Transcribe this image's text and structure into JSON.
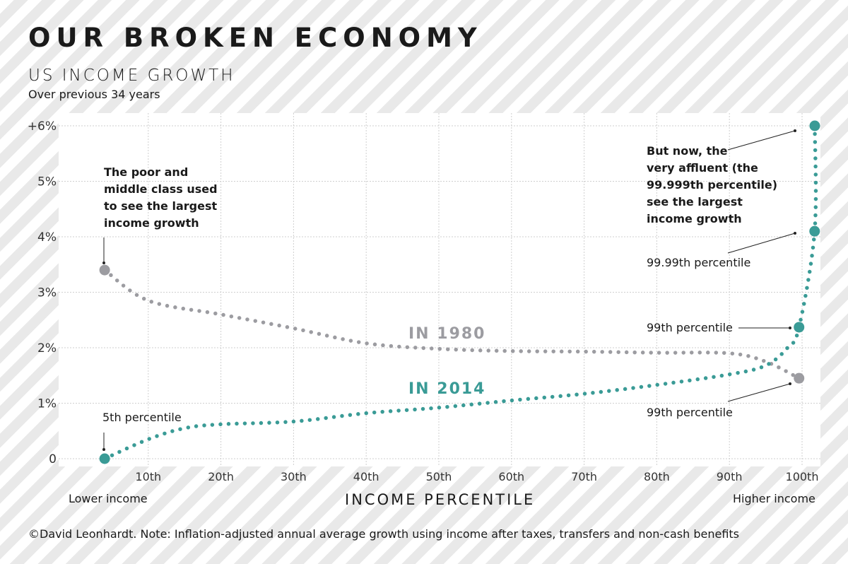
{
  "title": "OUR BROKEN ECONOMY",
  "subtitle": "US INCOME GROWTH",
  "subsubtitle": "Over previous 34 years",
  "note": "©David Leonhardt. Note: Inflation-adjusted annual average growth using income after taxes, transfers and non-cash benefits",
  "colors": {
    "series_2014": "#3a9b96",
    "series_1980": "#9c9ca1",
    "stripe": "#e9e9e9"
  },
  "chart_data": {
    "type": "line",
    "xlabel": "INCOME PERCENTILE",
    "x_left_label": "Lower income",
    "x_right_label": "Higher income",
    "ylim": [
      0,
      6
    ],
    "xlim": [
      0,
      102
    ],
    "grid": true,
    "yticks": [
      {
        "v": 0,
        "label": "0"
      },
      {
        "v": 1,
        "label": "1%"
      },
      {
        "v": 2,
        "label": "2%"
      },
      {
        "v": 3,
        "label": "3%"
      },
      {
        "v": 4,
        "label": "4%"
      },
      {
        "v": 5,
        "label": "5%"
      },
      {
        "v": 6,
        "label": "+6%"
      }
    ],
    "xticks": [
      {
        "v": 10,
        "label": "10th"
      },
      {
        "v": 20,
        "label": "20th"
      },
      {
        "v": 30,
        "label": "30th"
      },
      {
        "v": 40,
        "label": "40th"
      },
      {
        "v": 50,
        "label": "50th"
      },
      {
        "v": 60,
        "label": "60th"
      },
      {
        "v": 70,
        "label": "70th"
      },
      {
        "v": 80,
        "label": "80th"
      },
      {
        "v": 90,
        "label": "90th"
      },
      {
        "v": 100,
        "label": "100th"
      }
    ],
    "series": [
      {
        "name": "IN 1980",
        "color": "#9c9ca1",
        "x": [
          4,
          10,
          20,
          30,
          40,
          50,
          60,
          70,
          80,
          90,
          95,
          99
        ],
        "y": [
          3.4,
          2.85,
          2.6,
          2.35,
          2.08,
          1.98,
          1.94,
          1.93,
          1.91,
          1.9,
          1.75,
          1.45
        ],
        "highlight": [
          0,
          11
        ]
      },
      {
        "name": "IN 2014",
        "color": "#3a9b96",
        "x": [
          4,
          10,
          15,
          20,
          30,
          40,
          50,
          60,
          70,
          80,
          90,
          95,
          98,
          99,
          99.99,
          99.999
        ],
        "y": [
          0,
          0.35,
          0.55,
          0.62,
          0.67,
          0.82,
          0.92,
          1.05,
          1.17,
          1.33,
          1.52,
          1.68,
          2.0,
          2.37,
          4.1,
          6.0
        ],
        "highlight": [
          0,
          13,
          14,
          15
        ]
      }
    ],
    "annotations": {
      "poor": "The poor and middle class used to see the largest income growth",
      "poor_lines": [
        "The poor and",
        "middle class used",
        "to see the largest",
        "income growth"
      ],
      "affluent_lines": [
        "But now, the",
        "very affluent (the",
        "99.999th percentile)",
        "see the largest",
        "income growth"
      ],
      "p5": "5th percentile",
      "p9999": "99.99th percentile",
      "p99_2014": "99th percentile",
      "p99_1980": "99th percentile"
    }
  }
}
